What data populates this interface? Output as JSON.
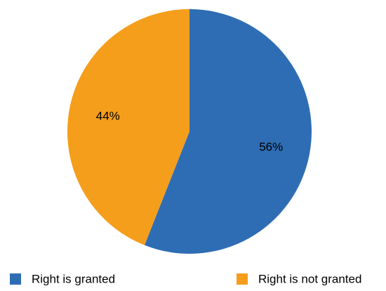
{
  "chart_data": {
    "type": "pie",
    "title": "",
    "categories": [
      "Right is granted",
      "Right is not granted"
    ],
    "values": [
      56,
      44
    ],
    "labels": [
      "56%",
      "44%"
    ],
    "colors": [
      "#2e6db4",
      "#f49e1c"
    ],
    "legend_position": "bottom",
    "start_angle_deg": 0,
    "direction": "clockwise"
  }
}
